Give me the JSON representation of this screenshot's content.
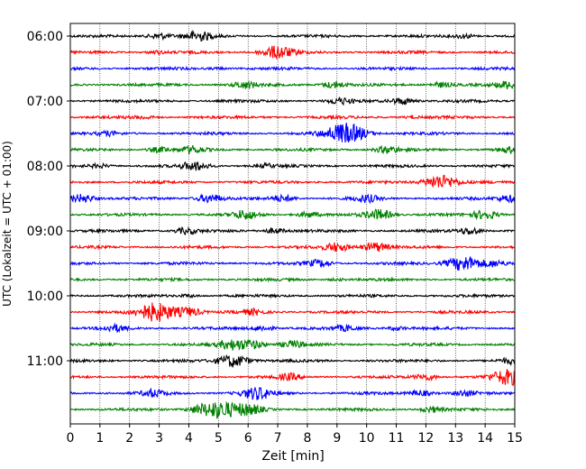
{
  "chart_data": {
    "type": "line",
    "title": "",
    "xlabel": "Zeit  [min]",
    "ylabel": "UTC (Lokalzeit = UTC + 01:00)",
    "xlim": [
      0,
      15
    ],
    "x_ticks": [
      "0",
      "1",
      "2",
      "3",
      "4",
      "5",
      "6",
      "7",
      "8",
      "9",
      "10",
      "11",
      "12",
      "13",
      "14",
      "15"
    ],
    "y_ticks": [
      "06:00",
      "07:00",
      "08:00",
      "09:00",
      "10:00",
      "11:00"
    ],
    "trace_interval_min": 15,
    "grid": "vertical dotted lines at each minute",
    "trace_colors": [
      "#000000",
      "#ff0000",
      "#0000ff",
      "#008000"
    ],
    "series": [
      {
        "start": "06:00",
        "events": [
          {
            "x": 3.0,
            "a": 0.35
          },
          {
            "x": 4.3,
            "a": 0.55
          },
          {
            "x": 13.3,
            "a": 0.25
          }
        ]
      },
      {
        "start": "06:15",
        "events": [
          {
            "x": 7.0,
            "a": 0.75
          },
          {
            "x": 2.9,
            "a": 0.15
          }
        ]
      },
      {
        "start": "06:30",
        "events": [
          {
            "x": 5.0,
            "a": 0.1
          }
        ]
      },
      {
        "start": "06:45",
        "events": [
          {
            "x": 5.9,
            "a": 0.4
          },
          {
            "x": 8.9,
            "a": 0.4
          },
          {
            "x": 12.5,
            "a": 0.3
          },
          {
            "x": 14.8,
            "a": 0.45
          }
        ]
      },
      {
        "start": "07:00",
        "events": [
          {
            "x": 9.1,
            "a": 0.35
          },
          {
            "x": 11.2,
            "a": 0.4
          }
        ]
      },
      {
        "start": "07:15",
        "events": [
          {
            "x": 2.5,
            "a": 0.15
          },
          {
            "x": 11.5,
            "a": 0.1
          }
        ]
      },
      {
        "start": "07:30",
        "events": [
          {
            "x": 9.3,
            "a": 1.2
          },
          {
            "x": 1.3,
            "a": 0.2
          }
        ]
      },
      {
        "start": "07:45",
        "events": [
          {
            "x": 10.7,
            "a": 0.4
          },
          {
            "x": 3.0,
            "a": 0.3
          },
          {
            "x": 4.1,
            "a": 0.4
          },
          {
            "x": 14.8,
            "a": 0.3
          }
        ]
      },
      {
        "start": "08:00",
        "events": [
          {
            "x": 4.2,
            "a": 0.5
          },
          {
            "x": 1.0,
            "a": 0.2
          },
          {
            "x": 6.6,
            "a": 0.2
          }
        ]
      },
      {
        "start": "08:15",
        "events": [
          {
            "x": 12.5,
            "a": 0.85
          }
        ]
      },
      {
        "start": "08:30",
        "events": [
          {
            "x": 0.4,
            "a": 0.5
          },
          {
            "x": 4.7,
            "a": 0.5
          },
          {
            "x": 7.2,
            "a": 0.35
          },
          {
            "x": 10.0,
            "a": 0.4
          },
          {
            "x": 14.8,
            "a": 0.4
          }
        ]
      },
      {
        "start": "08:45",
        "events": [
          {
            "x": 5.9,
            "a": 0.5
          },
          {
            "x": 8.0,
            "a": 0.3
          },
          {
            "x": 10.4,
            "a": 0.6
          },
          {
            "x": 14.0,
            "a": 0.5
          }
        ]
      },
      {
        "start": "09:00",
        "events": [
          {
            "x": 3.9,
            "a": 0.35
          },
          {
            "x": 6.9,
            "a": 0.3
          },
          {
            "x": 13.5,
            "a": 0.4
          }
        ]
      },
      {
        "start": "09:15",
        "events": [
          {
            "x": 10.3,
            "a": 0.55
          },
          {
            "x": 9.0,
            "a": 0.5
          }
        ]
      },
      {
        "start": "09:30",
        "events": [
          {
            "x": 13.3,
            "a": 0.9
          },
          {
            "x": 8.4,
            "a": 0.4
          },
          {
            "x": 14.3,
            "a": 0.3
          }
        ]
      },
      {
        "start": "09:45",
        "events": [
          {
            "x": 9.0,
            "a": 0.1
          }
        ]
      },
      {
        "start": "10:00",
        "events": [
          {
            "x": 4.0,
            "a": 0.15
          }
        ]
      },
      {
        "start": "10:15",
        "events": [
          {
            "x": 2.9,
            "a": 1.1
          },
          {
            "x": 4.0,
            "a": 0.5
          },
          {
            "x": 6.2,
            "a": 0.3
          }
        ]
      },
      {
        "start": "10:30",
        "events": [
          {
            "x": 1.5,
            "a": 0.35
          },
          {
            "x": 6.5,
            "a": 0.3
          },
          {
            "x": 9.3,
            "a": 0.3
          },
          {
            "x": 11.0,
            "a": 0.2
          }
        ]
      },
      {
        "start": "10:45",
        "events": [
          {
            "x": 5.5,
            "a": 0.6
          },
          {
            "x": 7.5,
            "a": 0.4
          },
          {
            "x": 6.2,
            "a": 0.45
          }
        ]
      },
      {
        "start": "11:00",
        "events": [
          {
            "x": 5.5,
            "a": 0.75
          },
          {
            "x": 14.9,
            "a": 0.3
          }
        ]
      },
      {
        "start": "11:15",
        "events": [
          {
            "x": 14.8,
            "a": 0.9
          },
          {
            "x": 7.4,
            "a": 0.35
          },
          {
            "x": 12.0,
            "a": 0.35
          }
        ]
      },
      {
        "start": "11:30",
        "events": [
          {
            "x": 6.3,
            "a": 0.7
          },
          {
            "x": 2.8,
            "a": 0.4
          },
          {
            "x": 11.8,
            "a": 0.35
          },
          {
            "x": 13.3,
            "a": 0.3
          }
        ]
      },
      {
        "start": "11:45",
        "events": [
          {
            "x": 5.0,
            "a": 1.0
          },
          {
            "x": 6.0,
            "a": 0.6
          },
          {
            "x": 4.3,
            "a": 0.3
          },
          {
            "x": 12.2,
            "a": 0.3
          }
        ]
      }
    ]
  }
}
